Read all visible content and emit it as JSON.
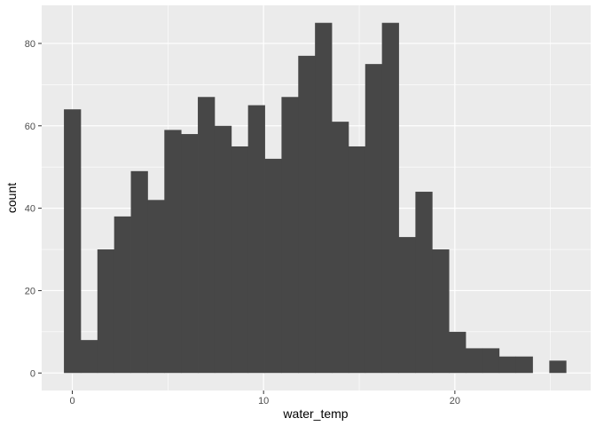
{
  "chart_data": {
    "type": "bar",
    "xlabel": "water_temp",
    "ylabel": "count",
    "xlim": [
      -1.6,
      27.1
    ],
    "ylim": [
      -4.25,
      89.25
    ],
    "x_ticks": [
      0,
      10,
      20
    ],
    "y_ticks": [
      0,
      20,
      40,
      60,
      80
    ],
    "x_tick_labels": [
      "0",
      "10",
      "20"
    ],
    "y_tick_labels": [
      "0",
      "20",
      "40",
      "60",
      "80"
    ],
    "grid": true,
    "bin_width": 0.875,
    "bins": [
      {
        "x": 0.0,
        "count": 64
      },
      {
        "x": 0.875,
        "count": 8
      },
      {
        "x": 1.75,
        "count": 30
      },
      {
        "x": 2.625,
        "count": 38
      },
      {
        "x": 3.5,
        "count": 49
      },
      {
        "x": 4.375,
        "count": 42
      },
      {
        "x": 5.25,
        "count": 59
      },
      {
        "x": 6.125,
        "count": 58
      },
      {
        "x": 7.0,
        "count": 67
      },
      {
        "x": 7.875,
        "count": 60
      },
      {
        "x": 8.75,
        "count": 55
      },
      {
        "x": 9.625,
        "count": 65
      },
      {
        "x": 10.5,
        "count": 52
      },
      {
        "x": 11.375,
        "count": 67
      },
      {
        "x": 12.25,
        "count": 77
      },
      {
        "x": 13.125,
        "count": 85
      },
      {
        "x": 14.0,
        "count": 61
      },
      {
        "x": 14.875,
        "count": 55
      },
      {
        "x": 15.75,
        "count": 75
      },
      {
        "x": 16.625,
        "count": 85
      },
      {
        "x": 17.5,
        "count": 33
      },
      {
        "x": 18.375,
        "count": 44
      },
      {
        "x": 19.25,
        "count": 30
      },
      {
        "x": 20.125,
        "count": 10
      },
      {
        "x": 21.0,
        "count": 6
      },
      {
        "x": 21.875,
        "count": 6
      },
      {
        "x": 22.75,
        "count": 4
      },
      {
        "x": 23.625,
        "count": 4
      },
      {
        "x": 24.5,
        "count": 0
      },
      {
        "x": 25.375,
        "count": 3
      }
    ],
    "colors": {
      "panel_background": "#ebebeb",
      "grid_major": "#ffffff",
      "bar_fill": "#474747",
      "tick_label": "#4d4d4d",
      "tick_mark": "#333333"
    }
  }
}
